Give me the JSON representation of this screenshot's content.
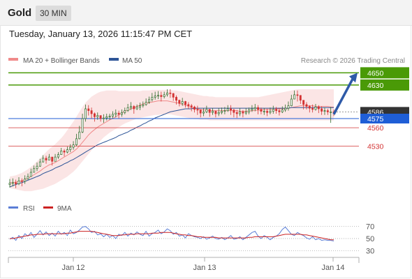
{
  "header": {
    "instrument": "Gold",
    "timeframe": "30 MIN"
  },
  "timestamp": "Tuesday, January 13, 2026 11:15:47 PM CET",
  "legend": {
    "bb_label": "MA 20 + Bollinger Bands",
    "ma50_label": "MA 50",
    "credit": "Research © 2026 Trading Central",
    "rsi_label": "RSI",
    "rsi_ma_label": "9MA"
  },
  "colors": {
    "bullish": "#2b9a1a",
    "bearish": "#d33333",
    "candle": "#2f6b2a",
    "ma50": "#2e5597",
    "bb": "#f7c6c6",
    "ma20": "#f08a8a",
    "level_green": "#4a9a07",
    "level_red": "#d33333",
    "arrow": "#2e5aa8",
    "last_price_bg": "#333333",
    "current_bg": "#1f5ed6",
    "rsi": "#5b7ed6",
    "rsi_ma": "#cc2222"
  },
  "chart_data": [
    {
      "type": "candlestick",
      "title": "",
      "y_axis_labels": [
        "4650",
        "4630",
        "4586",
        "4575",
        "4560",
        "4530"
      ],
      "x_tick_labels": [
        "Jan 12",
        "Jan 13",
        "Jan 14"
      ],
      "ylim": [
        4455,
        4655
      ],
      "levels": [
        {
          "value": 4650,
          "label": "4650",
          "color": "green"
        },
        {
          "value": 4630,
          "label": "4630",
          "color": "green"
        },
        {
          "value": 4560,
          "label": "4560",
          "color": "red"
        },
        {
          "value": 4530,
          "label": "4530",
          "color": "red"
        }
      ],
      "last_price": {
        "value": 4586,
        "label": "4586"
      },
      "current_price": {
        "value": 4575,
        "label": "4575"
      },
      "arrow": {
        "direction": "up",
        "from": 4582,
        "to": 4650
      },
      "close": [
        4469,
        4470,
        4468,
        4473,
        4472,
        4476,
        4480,
        4487,
        4493,
        4497,
        4504,
        4510,
        4507,
        4512,
        4505,
        4512,
        4516,
        4522,
        4520,
        4524,
        4528,
        4532,
        4542,
        4553,
        4575,
        4591,
        4588,
        4583,
        4578,
        4580,
        4575,
        4576,
        4578,
        4579,
        4582,
        4584,
        4582,
        4585,
        4588,
        4593,
        4595,
        4591,
        4594,
        4596,
        4598,
        4602,
        4606,
        4610,
        4612,
        4613,
        4611,
        4614,
        4617,
        4616,
        4610,
        4605,
        4600,
        4603,
        4598,
        4596,
        4594,
        4590,
        4589,
        4584,
        4586,
        4590,
        4585,
        4587,
        4583,
        4585,
        4587,
        4588,
        4591,
        4589,
        4585,
        4583,
        4586,
        4584,
        4586,
        4589,
        4591,
        4593,
        4590,
        4587,
        4587,
        4585,
        4587,
        4590,
        4588,
        4586,
        4589,
        4592,
        4596,
        4607,
        4614,
        4613,
        4605,
        4598,
        4595,
        4592,
        4590,
        4594,
        4591,
        4587,
        4588,
        4586,
        4586,
        4585
      ],
      "high": [
        4476,
        4477,
        4475,
        4479,
        4477,
        4482,
        4485,
        4493,
        4498,
        4503,
        4509,
        4515,
        4514,
        4517,
        4512,
        4517,
        4520,
        4527,
        4525,
        4529,
        4533,
        4538,
        4550,
        4563,
        4583,
        4598,
        4597,
        4593,
        4585,
        4585,
        4580,
        4582,
        4583,
        4583,
        4587,
        4590,
        4588,
        4590,
        4593,
        4599,
        4602,
        4597,
        4598,
        4601,
        4603,
        4608,
        4611,
        4617,
        4619,
        4620,
        4619,
        4619,
        4623,
        4623,
        4617,
        4613,
        4606,
        4609,
        4604,
        4602,
        4599,
        4596,
        4596,
        4590,
        4592,
        4596,
        4591,
        4592,
        4588,
        4592,
        4593,
        4594,
        4597,
        4597,
        4591,
        4589,
        4592,
        4589,
        4592,
        4593,
        4597,
        4599,
        4597,
        4593,
        4592,
        4591,
        4593,
        4596,
        4594,
        4592,
        4595,
        4598,
        4603,
        4614,
        4621,
        4621,
        4611,
        4604,
        4602,
        4597,
        4598,
        4599,
        4597,
        4595,
        4593,
        4591,
        4594,
        4590
      ],
      "low": [
        4462,
        4464,
        4461,
        4466,
        4464,
        4468,
        4475,
        4480,
        4488,
        4489,
        4496,
        4503,
        4501,
        4507,
        4498,
        4506,
        4509,
        4516,
        4513,
        4518,
        4520,
        4524,
        4530,
        4541,
        4551,
        4570,
        4580,
        4575,
        4570,
        4573,
        4570,
        4568,
        4572,
        4573,
        4575,
        4577,
        4575,
        4578,
        4582,
        4586,
        4589,
        4583,
        4589,
        4589,
        4593,
        4596,
        4599,
        4603,
        4606,
        4607,
        4603,
        4608,
        4611,
        4609,
        4604,
        4598,
        4595,
        4596,
        4593,
        4591,
        4587,
        4585,
        4581,
        4577,
        4579,
        4584,
        4578,
        4581,
        4577,
        4579,
        4582,
        4582,
        4586,
        4581,
        4577,
        4576,
        4579,
        4577,
        4581,
        4582,
        4586,
        4587,
        4582,
        4582,
        4581,
        4579,
        4582,
        4583,
        4583,
        4580,
        4584,
        4586,
        4588,
        4595,
        4607,
        4603,
        4599,
        4590,
        4590,
        4585,
        4585,
        4588,
        4584,
        4581,
        4581,
        4581,
        4568,
        4579
      ],
      "ma50": [
        4463,
        4465,
        4467,
        4469,
        4470,
        4472,
        4474,
        4476,
        4478,
        4480,
        4482,
        4485,
        4487,
        4489,
        4491,
        4494,
        4496,
        4498,
        4501,
        4503,
        4506,
        4508,
        4511,
        4514,
        4517,
        4520,
        4523,
        4526,
        4529,
        4532,
        4534,
        4536,
        4538,
        4540,
        4542,
        4544,
        4547,
        4549,
        4551,
        4553,
        4556,
        4558,
        4561,
        4563,
        4566,
        4568,
        4571,
        4573,
        4576,
        4578,
        4580,
        4582,
        4584,
        4586,
        4587,
        4588,
        4589,
        4590,
        4591,
        4591,
        4591,
        4592,
        4592,
        4592,
        4592,
        4592,
        4592,
        4592,
        4592,
        4592,
        4592,
        4592,
        4592,
        4592,
        4592,
        4592,
        4592,
        4592,
        4592,
        4592,
        4592,
        4592,
        4592,
        4592,
        4592,
        4592,
        4592,
        4592,
        4592,
        4592,
        4592,
        4592,
        4592,
        4593,
        4593,
        4593,
        4593,
        4593,
        4593,
        4593,
        4593,
        4593,
        4593,
        4593,
        4593,
        4593,
        4593,
        4593
      ],
      "ma20": [
        4470,
        4470,
        4471,
        4472,
        4473,
        4475,
        4477,
        4480,
        4483,
        4486,
        4489,
        4493,
        4496,
        4499,
        4501,
        4503,
        4506,
        4509,
        4512,
        4515,
        4518,
        4521,
        4525,
        4530,
        4536,
        4542,
        4548,
        4553,
        4557,
        4561,
        4564,
        4567,
        4570,
        4573,
        4575,
        4578,
        4581,
        4584,
        4587,
        4589,
        4591,
        4593,
        4595,
        4597,
        4599,
        4600,
        4601,
        4602,
        4603,
        4604,
        4604,
        4604,
        4604,
        4603,
        4602,
        4601,
        4600,
        4598,
        4597,
        4595,
        4593,
        4592,
        4591,
        4590,
        4589,
        4589,
        4588,
        4588,
        4588,
        4588,
        4588,
        4588,
        4588,
        4588,
        4588,
        4588,
        4587,
        4587,
        4587,
        4587,
        4588,
        4588,
        4589,
        4589,
        4590,
        4590,
        4590,
        4590,
        4591,
        4591,
        4591,
        4591,
        4592,
        4593,
        4594,
        4595,
        4596,
        4596,
        4596,
        4596,
        4596,
        4595,
        4595,
        4595,
        4595,
        4595,
        4594,
        4594
      ],
      "bb_upper": [
        4480,
        4481,
        4482,
        4484,
        4486,
        4489,
        4492,
        4496,
        4500,
        4505,
        4510,
        4515,
        4520,
        4525,
        4529,
        4533,
        4538,
        4543,
        4549,
        4556,
        4563,
        4570,
        4578,
        4586,
        4594,
        4601,
        4606,
        4611,
        4614,
        4617,
        4619,
        4620,
        4621,
        4621,
        4621,
        4621,
        4620,
        4620,
        4620,
        4620,
        4620,
        4620,
        4620,
        4620,
        4621,
        4621,
        4621,
        4622,
        4622,
        4622,
        4622,
        4622,
        4622,
        4622,
        4621,
        4621,
        4620,
        4619,
        4618,
        4617,
        4616,
        4615,
        4614,
        4613,
        4612,
        4612,
        4611,
        4611,
        4610,
        4610,
        4610,
        4610,
        4610,
        4610,
        4610,
        4610,
        4610,
        4610,
        4610,
        4610,
        4610,
        4610,
        4610,
        4611,
        4612,
        4613,
        4614,
        4615,
        4616,
        4617,
        4618,
        4619,
        4620,
        4621,
        4622,
        4623,
        4623,
        4623,
        4623,
        4623,
        4623,
        4623,
        4623,
        4623,
        4623,
        4623,
        4623,
        4623
      ],
      "bb_lower": [
        4461,
        4460,
        4459,
        4458,
        4457,
        4456,
        4456,
        4456,
        4457,
        4458,
        4459,
        4460,
        4462,
        4464,
        4466,
        4468,
        4471,
        4474,
        4477,
        4480,
        4484,
        4488,
        4493,
        4499,
        4505,
        4511,
        4517,
        4523,
        4529,
        4534,
        4539,
        4544,
        4548,
        4552,
        4555,
        4558,
        4561,
        4564,
        4567,
        4569,
        4571,
        4573,
        4575,
        4576,
        4577,
        4578,
        4579,
        4580,
        4581,
        4581,
        4582,
        4582,
        4582,
        4582,
        4581,
        4580,
        4579,
        4578,
        4577,
        4576,
        4575,
        4574,
        4574,
        4573,
        4573,
        4573,
        4572,
        4572,
        4572,
        4572,
        4572,
        4572,
        4572,
        4572,
        4572,
        4572,
        4572,
        4572,
        4572,
        4572,
        4572,
        4572,
        4572,
        4572,
        4572,
        4572,
        4572,
        4572,
        4572,
        4572,
        4572,
        4572,
        4572,
        4572,
        4572,
        4572,
        4572,
        4572,
        4572,
        4572,
        4572,
        4572,
        4572,
        4572,
        4572,
        4572,
        4572,
        4572
      ]
    },
    {
      "type": "line",
      "title": "RSI",
      "y_tick_labels": [
        "70",
        "50",
        "30"
      ],
      "ylim": [
        20,
        80
      ],
      "guides": [
        70,
        50,
        30
      ],
      "series": [
        {
          "name": "RSI",
          "values": [
            49,
            52,
            47,
            55,
            50,
            58,
            54,
            60,
            52,
            57,
            63,
            56,
            61,
            55,
            59,
            54,
            62,
            57,
            60,
            55,
            64,
            58,
            60,
            64,
            69,
            70,
            66,
            60,
            62,
            56,
            58,
            53,
            57,
            52,
            55,
            50,
            57,
            55,
            60,
            54,
            59,
            56,
            61,
            57,
            55,
            62,
            54,
            58,
            60,
            64,
            58,
            61,
            66,
            63,
            57,
            60,
            54,
            56,
            51,
            58,
            55,
            53,
            52,
            50,
            53,
            49,
            51,
            54,
            50,
            49,
            52,
            48,
            51,
            55,
            49,
            50,
            53,
            48,
            52,
            56,
            60,
            62,
            54,
            50,
            55,
            52,
            48,
            52,
            54,
            58,
            65,
            69,
            63,
            57,
            55,
            60,
            57,
            55,
            51,
            49,
            53,
            48,
            50,
            47,
            48,
            47,
            47,
            46
          ]
        },
        {
          "name": "9MA",
          "values": [
            50,
            50,
            51,
            52,
            53,
            54,
            55,
            56,
            56,
            57,
            57,
            57,
            58,
            58,
            58,
            58,
            58,
            58,
            58,
            59,
            59,
            60,
            61,
            62,
            62,
            62,
            62,
            62,
            61,
            60,
            59,
            58,
            57,
            56,
            55,
            55,
            55,
            56,
            56,
            57,
            57,
            57,
            58,
            58,
            58,
            58,
            58,
            59,
            59,
            59,
            60,
            60,
            60,
            60,
            59,
            58,
            57,
            56,
            56,
            55,
            55,
            54,
            53,
            53,
            52,
            52,
            52,
            52,
            52,
            51,
            51,
            51,
            51,
            51,
            51,
            51,
            51,
            51,
            51,
            52,
            52,
            53,
            53,
            53,
            53,
            53,
            53,
            53,
            54,
            55,
            56,
            57,
            57,
            57,
            57,
            57,
            57,
            56,
            56,
            55,
            54,
            53,
            52,
            51,
            50,
            49,
            48,
            48
          ]
        }
      ]
    }
  ]
}
